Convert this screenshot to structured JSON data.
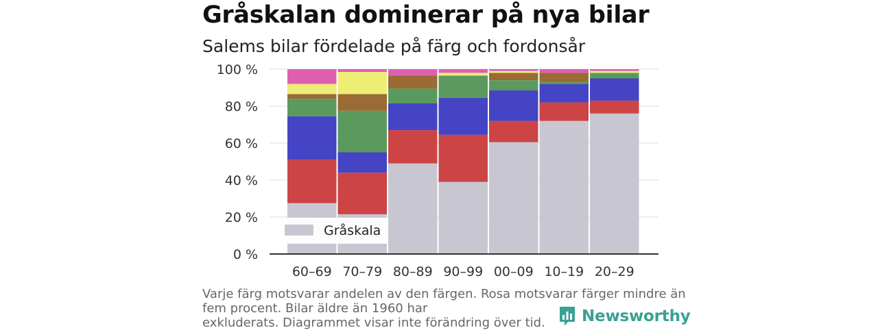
{
  "header": {
    "title": "Gråskalan dominerar på nya bilar",
    "subtitle": "Salems bilar fördelade på färg och fordonsår"
  },
  "footer": {
    "note_lines": [
      "Varje färg motsvarar andelen av den färgen. Rosa motsvarar färger mindre än",
      "fem procent. Bilar äldre än 1960 har",
      "exkluderats. Diagrammet visar inte förändring över tid."
    ],
    "brand": "Newsworthy"
  },
  "chart_data": {
    "type": "bar",
    "stacked": true,
    "categories": [
      "60–69",
      "70–79",
      "80–89",
      "90–99",
      "00–09",
      "10–19",
      "20–29"
    ],
    "ylim": [
      0,
      100
    ],
    "y_ticks": [
      0,
      20,
      40,
      60,
      80,
      100
    ],
    "y_tick_labels": [
      "0 %",
      "20 %",
      "40 %",
      "60 %",
      "80 %",
      "100 %"
    ],
    "grid": true,
    "legend": {
      "placement": "bottom-left",
      "entries": [
        "Gråskala"
      ]
    },
    "series": [
      {
        "name": "Gråskala",
        "color": "#c8c7d1",
        "values": [
          27.5,
          21.5,
          49,
          39,
          60.5,
          72,
          76
        ]
      },
      {
        "color": "#cc4444",
        "values": [
          23.5,
          22.5,
          18,
          25.5,
          11.5,
          10,
          7
        ]
      },
      {
        "color": "#4444c4",
        "values": [
          23.5,
          11,
          14.5,
          20,
          16.5,
          10,
          12
        ]
      },
      {
        "color": "#5a9a5e",
        "values": [
          9.5,
          22.5,
          8,
          12,
          5.5,
          1,
          3
        ]
      },
      {
        "color": "#9a6b34",
        "values": [
          2.5,
          9,
          7,
          0,
          4,
          5,
          0
        ]
      },
      {
        "color": "#eeee77",
        "values": [
          5.5,
          12,
          0,
          1.5,
          1,
          0,
          1
        ]
      },
      {
        "color": "#dd60b0",
        "values": [
          8,
          1.5,
          3.5,
          2,
          1,
          2,
          1
        ]
      }
    ]
  }
}
